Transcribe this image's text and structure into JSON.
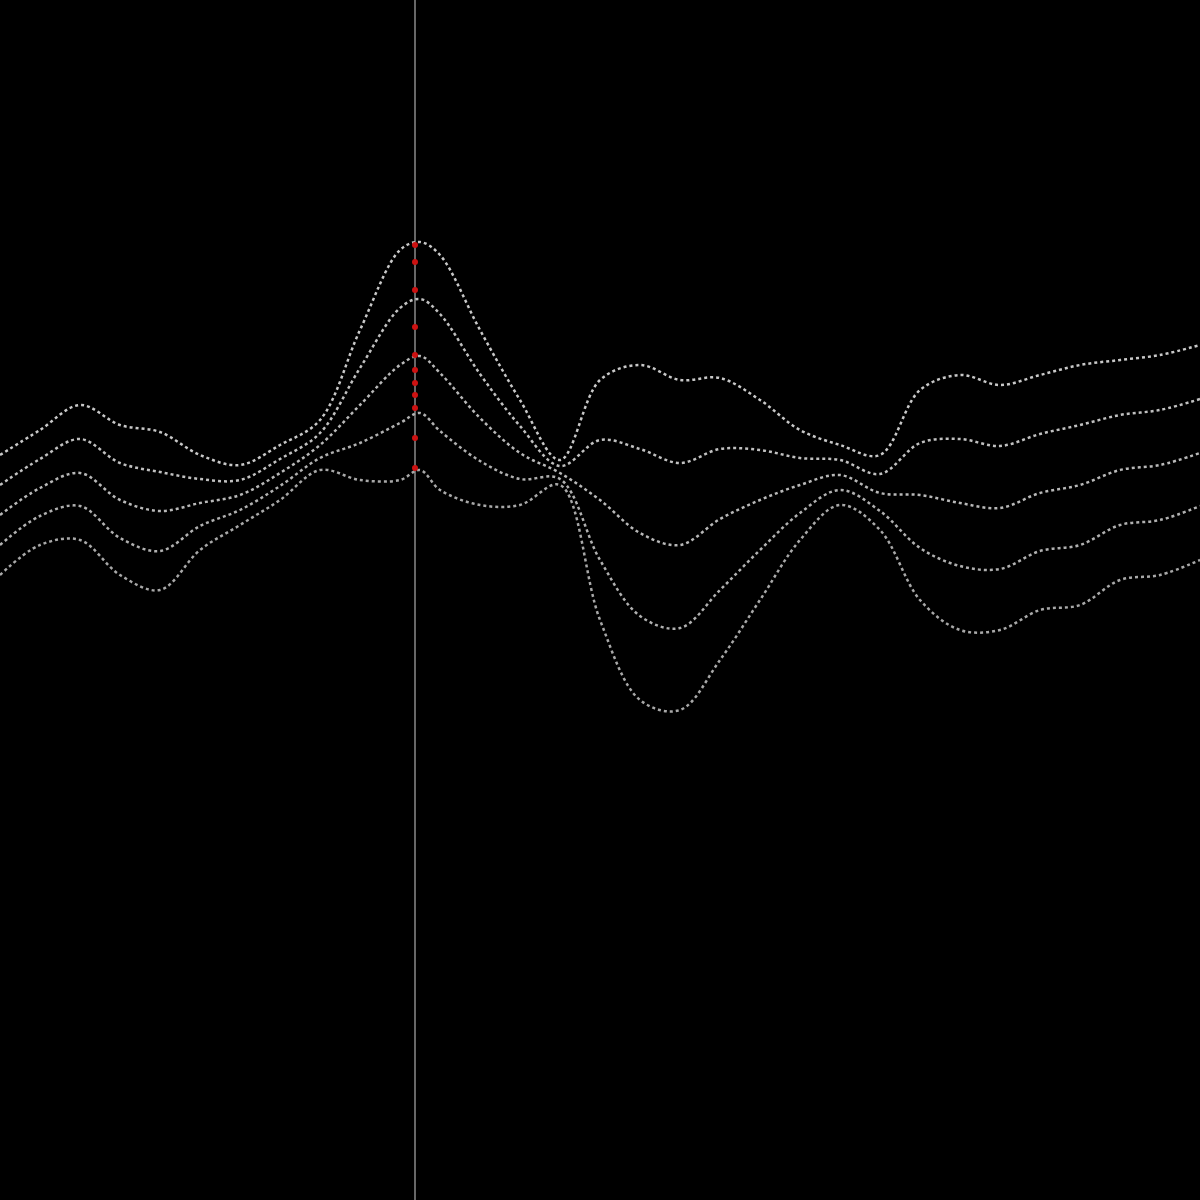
{
  "chart_data": {
    "type": "line",
    "x": [
      0,
      40,
      80,
      120,
      160,
      200,
      240,
      280,
      320,
      360,
      400,
      420,
      440,
      480,
      520,
      560,
      600,
      640,
      680,
      720,
      760,
      800,
      840,
      880,
      920,
      960,
      1000,
      1040,
      1080,
      1120,
      1160,
      1200
    ],
    "xlim": [
      0,
      1200
    ],
    "ylim": [
      1200,
      0
    ],
    "xticks": [],
    "yticks": [],
    "tick_labels": false,
    "grid": false,
    "vertical_line": 415,
    "vertical_line_color": "#8a8a8a",
    "series": [
      {
        "color": "#c8c8c8",
        "line_style": "dotted",
        "values": [
          455,
          430,
          405,
          425,
          432,
          455,
          465,
          445,
          420,
          330,
          250,
          242,
          255,
          330,
          400,
          460,
          380,
          365,
          380,
          378,
          400,
          430,
          445,
          455,
          390,
          375,
          385,
          375,
          365,
          360,
          355,
          345
        ]
      },
      {
        "color": "#c0c0c0",
        "line_style": "dotted",
        "values": [
          485,
          459,
          439,
          463,
          472,
          479,
          480,
          459,
          433,
          368,
          308,
          299,
          314,
          374,
          426,
          466,
          440,
          449,
          463,
          449,
          450,
          458,
          460,
          474,
          443,
          439,
          446,
          434,
          425,
          415,
          410,
          399
        ]
      },
      {
        "color": "#b8b8b8",
        "line_style": "dotted",
        "values": [
          515,
          488,
          473,
          500,
          511,
          503,
          495,
          473,
          445,
          405,
          365,
          356,
          373,
          418,
          453,
          473,
          500,
          533,
          545,
          519,
          500,
          485,
          475,
          493,
          495,
          503,
          508,
          493,
          485,
          470,
          465,
          453
        ]
      },
      {
        "color": "#b0b0b0",
        "line_style": "dotted",
        "values": [
          545,
          516,
          506,
          538,
          551,
          526,
          510,
          486,
          458,
          443,
          423,
          413,
          431,
          461,
          479,
          479,
          560,
          616,
          628,
          590,
          550,
          513,
          490,
          511,
          548,
          566,
          569,
          551,
          545,
          525,
          520,
          506
        ]
      },
      {
        "color": "#a8a8a8",
        "line_style": "dotted",
        "values": [
          575,
          545,
          540,
          575,
          590,
          550,
          525,
          500,
          470,
          480,
          480,
          470,
          490,
          505,
          505,
          485,
          620,
          700,
          710,
          660,
          600,
          540,
          505,
          530,
          600,
          630,
          630,
          610,
          605,
          580,
          575,
          560
        ]
      },
      {
        "type": "scatter",
        "marker": "circle",
        "color": "#cc1111",
        "x": [
          415,
          415,
          415,
          415,
          415,
          415,
          415,
          415,
          415,
          415,
          415
        ],
        "values": [
          245,
          262,
          290,
          327,
          355,
          370,
          383,
          395,
          408,
          438,
          468
        ]
      }
    ]
  }
}
